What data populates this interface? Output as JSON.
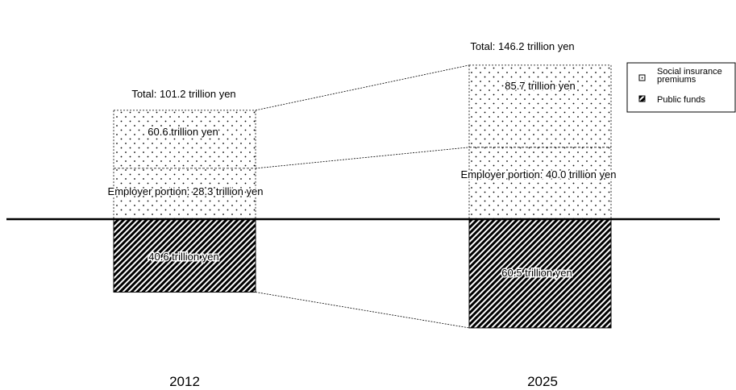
{
  "chart_data": {
    "type": "bar",
    "stacked": true,
    "categories": [
      "2012",
      "2025"
    ],
    "series": [
      {
        "name": "Social insurance premiums",
        "values": [
          60.6,
          85.7
        ]
      },
      {
        "name": "Public funds",
        "values": [
          40.6,
          60.5
        ]
      }
    ],
    "totals": [
      {
        "label": "Total: 101.2 trillion yen",
        "value": 101.2
      },
      {
        "label": "Total: 146.2 trillion yen",
        "value": 146.2
      }
    ],
    "employer_portion": [
      {
        "label": "Employer portion: 28.3 trillion yen",
        "value": 28.3
      },
      {
        "label": "Employer portion: 40.0 trillion yen",
        "value": 40.0
      }
    ],
    "segment_labels": {
      "premiums": [
        "60.6 trillion yen",
        "85.7 trillion yen"
      ],
      "public": [
        "40.6 trillion yen",
        "60.5 trillion yen"
      ]
    },
    "legend": {
      "position": "top-right",
      "items": [
        {
          "label": "Social insurance premiums",
          "pattern": "dots"
        },
        {
          "label": "Public funds",
          "pattern": "diagonal-hatch"
        }
      ]
    },
    "colors": {
      "ink": "#000000",
      "background": "#ffffff"
    },
    "grid": false
  }
}
